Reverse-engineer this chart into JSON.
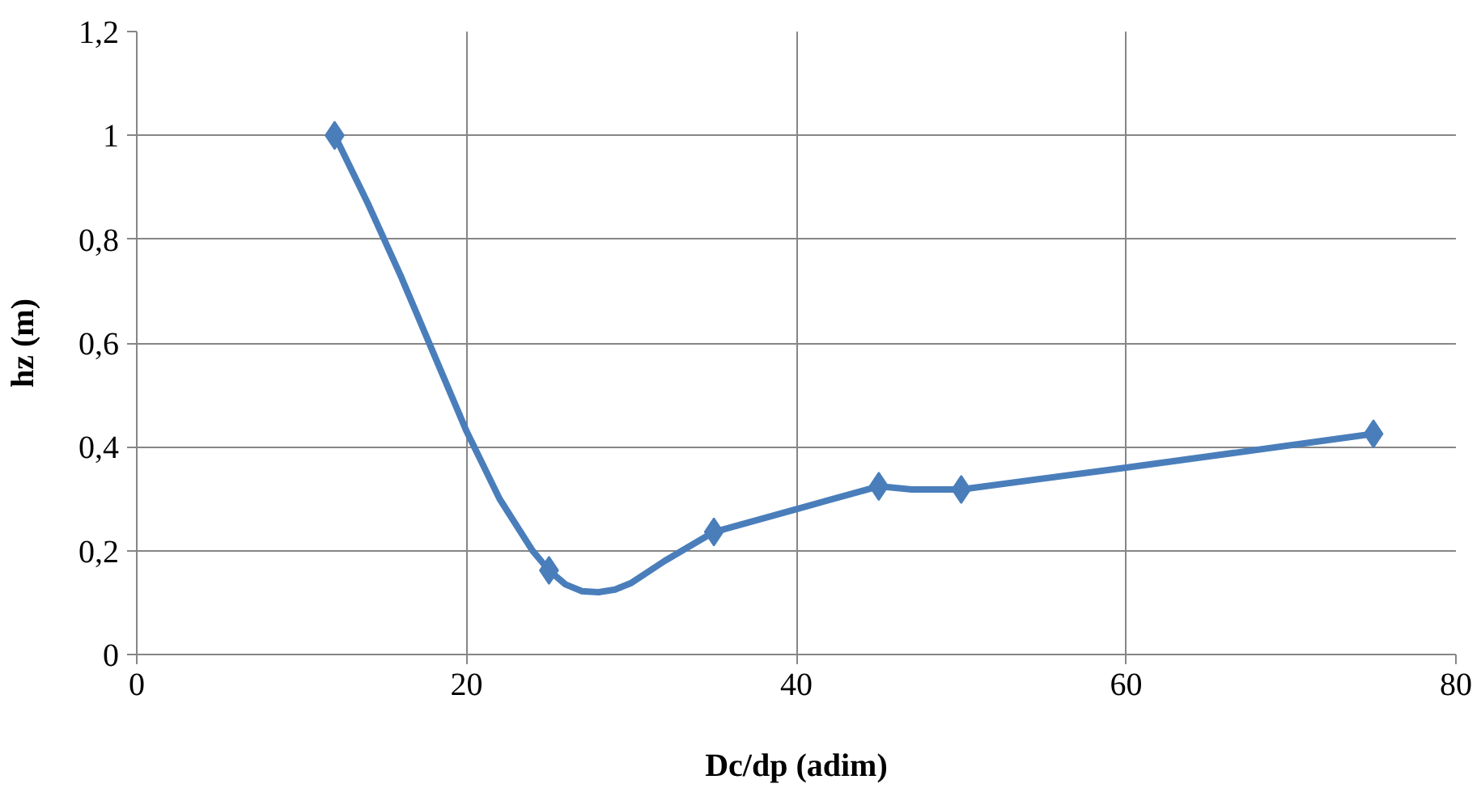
{
  "chart_data": {
    "type": "scatter",
    "xlabel": "Dc/dp (adim)",
    "ylabel": "hz (m)",
    "series": [
      {
        "type": "line",
        "marker": "none",
        "color": "#4a7ebb",
        "x": [
          12,
          14,
          16,
          18,
          20,
          22,
          24,
          25,
          26,
          27,
          28,
          29,
          30,
          32,
          35,
          40,
          45,
          47,
          50,
          60,
          75
        ],
        "values": [
          1.0,
          0.87,
          0.73,
          0.58,
          0.43,
          0.3,
          0.2,
          0.162,
          0.135,
          0.122,
          0.12,
          0.125,
          0.138,
          0.18,
          0.236,
          0.28,
          0.324,
          0.318,
          0.318,
          0.36,
          0.425
        ]
      },
      {
        "color": "#4a7ebb",
        "x": [
          12,
          25,
          35,
          45,
          50,
          75
        ],
        "values": [
          1.0,
          0.162,
          0.236,
          0.324,
          0.318,
          0.425
        ]
      }
    ],
    "xlim": [
      0,
      80
    ],
    "xticks": [
      0,
      20,
      40,
      60,
      80
    ],
    "ylim": [
      0,
      1.2
    ],
    "yticks": [
      0,
      {
        "value": 0.2,
        "label": "0,2"
      },
      {
        "value": 0.4,
        "label": "0,4"
      },
      {
        "value": 0.6,
        "label": "0,6"
      },
      {
        "value": 0.8,
        "label": "0,8"
      },
      1,
      {
        "value": 1.2,
        "label": "1,2"
      }
    ],
    "grid": true,
    "marker": "diamond",
    "line_style": "solid"
  }
}
